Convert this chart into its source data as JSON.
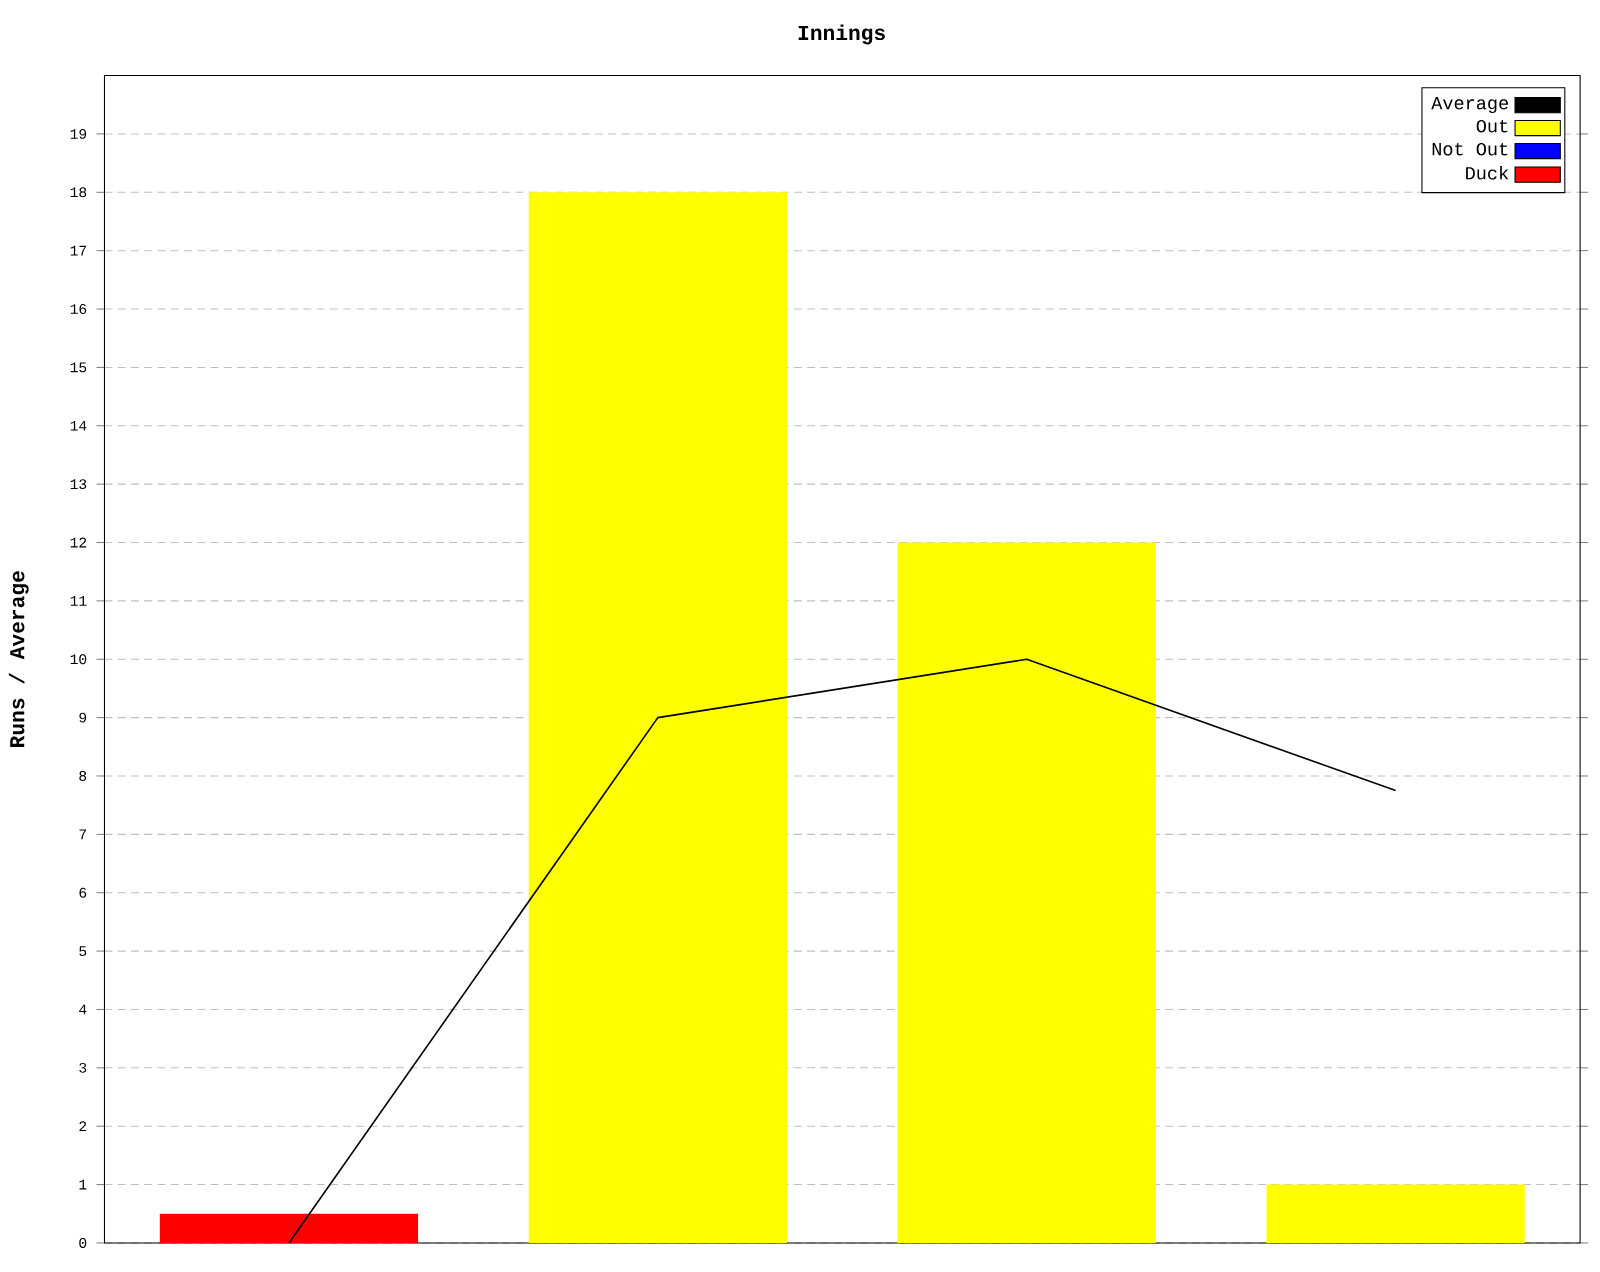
{
  "chart_data": {
    "type": "bar",
    "title": "Innings",
    "ylabel": "Runs / Average",
    "categories": [
      null,
      null,
      null,
      null
    ],
    "series": [
      {
        "name": "Average",
        "type": "line",
        "color": "#000000",
        "values": [
          0,
          9,
          10,
          7.75
        ]
      },
      {
        "name": "Out",
        "color": "#ffff00",
        "values": [
          null,
          18,
          12,
          1
        ]
      },
      {
        "name": "Not Out",
        "color": "#0000ff",
        "values": [
          null,
          null,
          null,
          null
        ]
      },
      {
        "name": "Duck",
        "color": "#ff0000",
        "values": [
          0.5,
          null,
          null,
          null
        ]
      }
    ],
    "stacked": true,
    "ylim": [
      0,
      20
    ],
    "yticks": [
      0,
      1,
      2,
      3,
      4,
      5,
      6,
      7,
      8,
      9,
      10,
      11,
      12,
      13,
      14,
      15,
      16,
      17,
      18,
      19
    ],
    "grid": "y",
    "legend": "top right",
    "tick_labels": "y"
  }
}
